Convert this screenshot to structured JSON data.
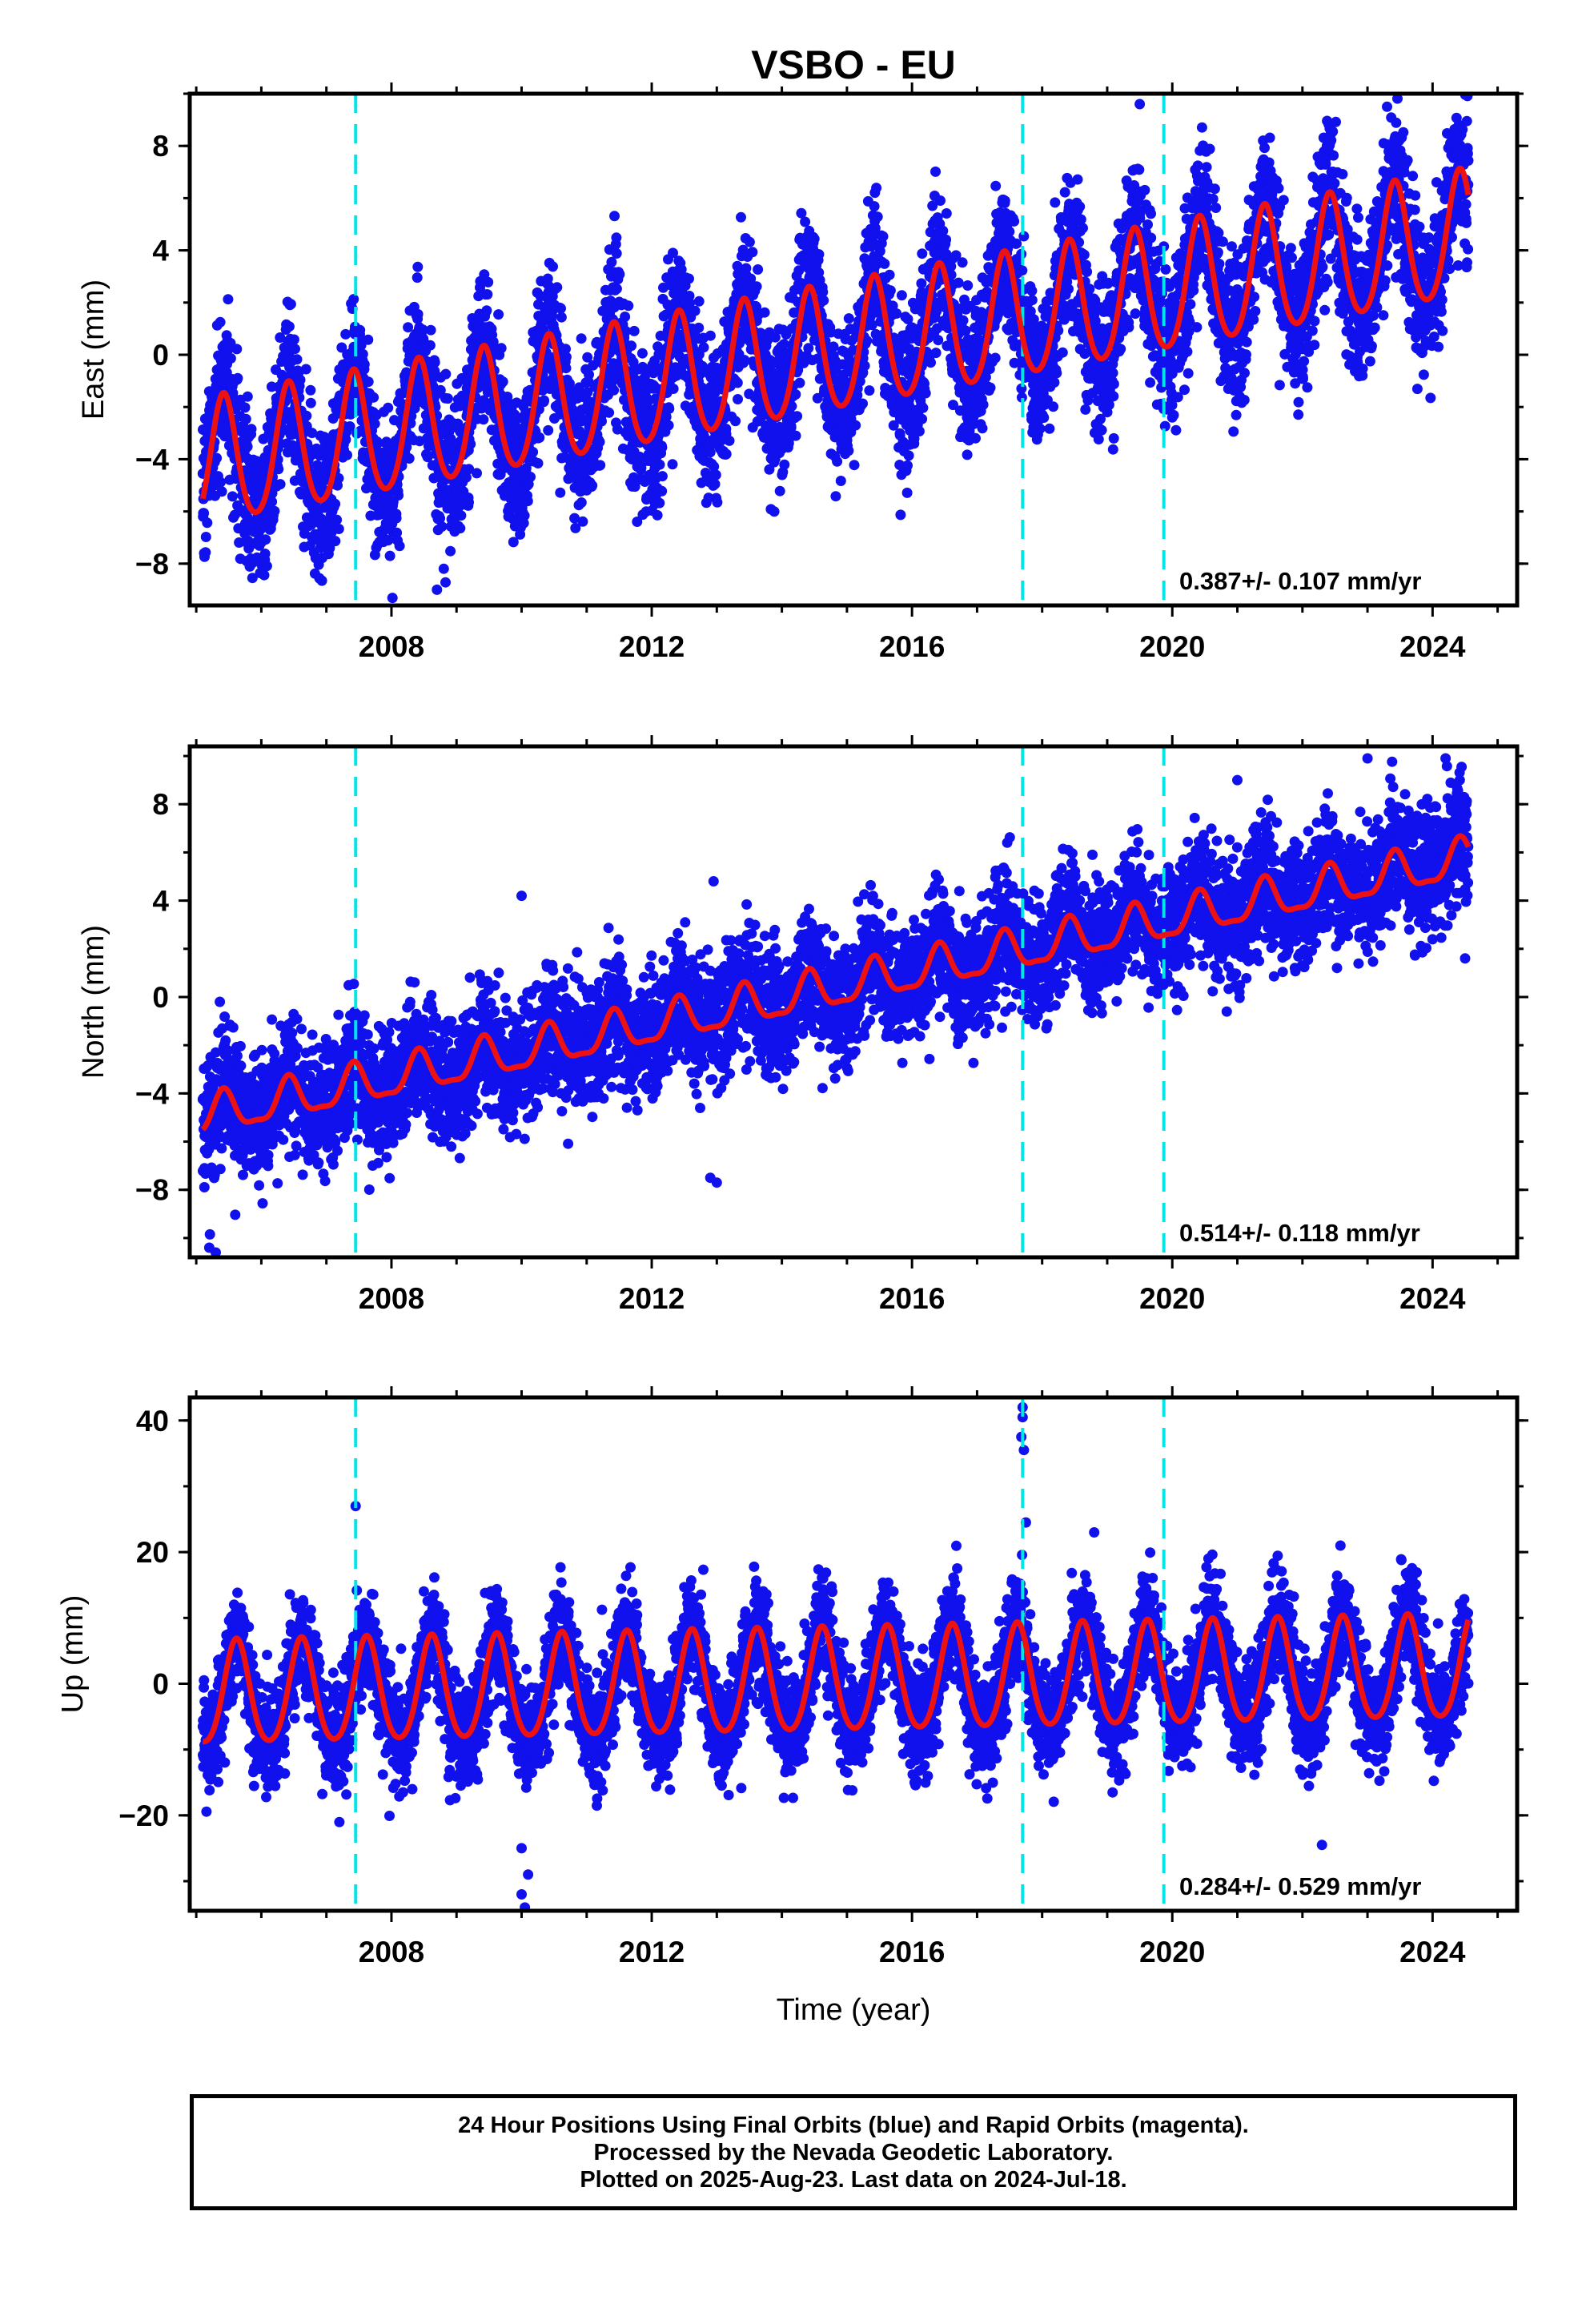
{
  "title": "VSBO - EU",
  "colors": {
    "points": "#1111ee",
    "fit": "#ee1111",
    "discontinuity": "#00e5e5"
  },
  "xlabel": "Time (year)",
  "x_tick_labels": [
    "2008",
    "2012",
    "2016",
    "2020",
    "2024"
  ],
  "footer": {
    "line1": "24 Hour Positions Using Final Orbits (blue) and Rapid Orbits (magenta).",
    "line2": "Processed by the Nevada Geodetic Laboratory.",
    "line3": "Plotted on 2025-Aug-23. Last data on 2024-Jul-18."
  },
  "chart_data": [
    {
      "type": "scatter",
      "component": "east",
      "ylabel": "East (mm)",
      "rate_label": "0.387+/- 0.107 mm/yr",
      "xlim": [
        2004.9,
        2025.3
      ],
      "ylim": [
        -9.6,
        10.0
      ],
      "yticks": [
        -8,
        -4,
        0,
        4,
        8
      ],
      "xticks": [
        2008,
        2012,
        2016,
        2020,
        2024
      ],
      "discontinuities": [
        2007.45,
        2017.7,
        2019.87
      ],
      "data_span": [
        2005.1,
        2024.55
      ],
      "model": {
        "start_value": -4.3,
        "end_value": 4.5,
        "annual_amplitude": 2.4,
        "annual_peak_phase": 0.42,
        "semiannual_amplitude": 0.3,
        "noise": 1.4,
        "offsets": [
          {
            "year": 2017.7,
            "value": 1.0
          }
        ]
      },
      "outliers": [
        [
          2008.7,
          -9.0
        ],
        [
          2019.5,
          9.6
        ],
        [
          2023.3,
          9.5
        ],
        [
          2020.0,
          -2.4
        ]
      ]
    },
    {
      "type": "scatter",
      "component": "north",
      "ylabel": "North (mm)",
      "rate_label": "0.514+/- 0.118 mm/yr",
      "xlim": [
        2004.9,
        2025.3
      ],
      "ylim": [
        -10.8,
        10.4
      ],
      "yticks": [
        -8,
        -4,
        0,
        4,
        8
      ],
      "xticks": [
        2008,
        2012,
        2016,
        2020,
        2024
      ],
      "discontinuities": [
        2007.45,
        2017.7,
        2019.87
      ],
      "data_span": [
        2005.1,
        2024.55
      ],
      "model": {
        "start_value": -5.0,
        "end_value": 5.7,
        "annual_amplitude": 0.8,
        "annual_peak_phase": 0.42,
        "semiannual_amplitude": 0.25,
        "noise": 1.25,
        "offsets": []
      },
      "outliers": [
        [
          2005.2,
          -10.4
        ],
        [
          2005.3,
          -10.6
        ],
        [
          2013.0,
          -7.7
        ],
        [
          2012.9,
          -7.5
        ],
        [
          2010.0,
          4.2
        ],
        [
          2012.95,
          4.8
        ],
        [
          2023.0,
          9.9
        ],
        [
          2024.2,
          9.9
        ],
        [
          2021.0,
          9.0
        ],
        [
          2024.5,
          1.6
        ]
      ]
    },
    {
      "type": "scatter",
      "component": "up",
      "ylabel": "Up (mm)",
      "rate_label": "0.284+/- 0.529 mm/yr",
      "xlim": [
        2004.9,
        2025.3
      ],
      "ylim": [
        -34.5,
        43.5
      ],
      "yticks": [
        -20,
        0,
        20,
        40
      ],
      "xticks": [
        2008,
        2012,
        2016,
        2020,
        2024
      ],
      "discontinuities": [
        2007.45,
        2017.7,
        2019.87
      ],
      "data_span": [
        2005.1,
        2024.55
      ],
      "model": {
        "start_value": -2.0,
        "end_value": 2.0,
        "annual_amplitude": 7.8,
        "annual_peak_phase": 0.62,
        "semiannual_amplitude": 1.0,
        "noise": 4.0,
        "offsets": []
      },
      "outliers": [
        [
          2007.45,
          27.0
        ],
        [
          2017.7,
          42.0
        ],
        [
          2017.7,
          40.5
        ],
        [
          2017.68,
          37.5
        ],
        [
          2017.72,
          35.5
        ],
        [
          2010.05,
          -34.0
        ],
        [
          2010.0,
          -32.0
        ],
        [
          2010.1,
          -29.0
        ],
        [
          2010.0,
          -25.0
        ],
        [
          2022.3,
          -24.5
        ],
        [
          2017.75,
          24.5
        ],
        [
          2018.8,
          23.0
        ]
      ]
    }
  ]
}
